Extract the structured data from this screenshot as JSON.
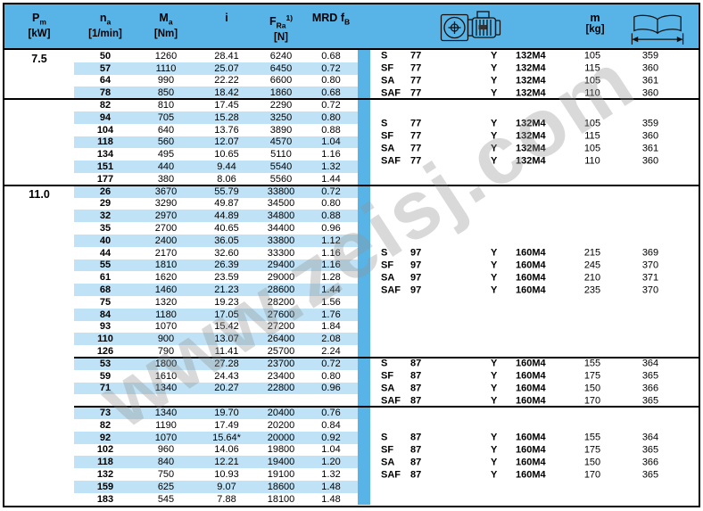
{
  "watermark": "www.zeisj.com",
  "colors": {
    "header_blue": "#58b4e7",
    "row_highlight": "#bfe2f6",
    "separator_blue": "#58b4e7",
    "border": "#000000"
  },
  "header": {
    "pm": {
      "main": "P",
      "sub": "m",
      "unit": "[kW]"
    },
    "na": {
      "main": "n",
      "sub": "a",
      "unit": "[1/min]"
    },
    "ma": {
      "main": "M",
      "sub": "a",
      "unit": "[Nm]"
    },
    "ratio": {
      "main": "i"
    },
    "fra": {
      "main": "F",
      "sub": "Ra",
      "sup": "1)",
      "unit": "[N]"
    },
    "fb": {
      "pre": "MRD ",
      "main": "f",
      "sub": "B"
    },
    "mass": {
      "main": "m",
      "unit": "[kg]"
    },
    "icons": {
      "gearmotor": "gearmotor-drawing-icon",
      "book": "catalog-pages-icon"
    }
  },
  "sections": [
    {
      "pm": "7.5",
      "blocks": [
        {
          "divider": "none",
          "rows": [
            {
              "na": "50",
              "ma": "1260",
              "i": "28.41",
              "fra": "6240",
              "fb": "0.68",
              "hl": false
            },
            {
              "na": "57",
              "ma": "1110",
              "i": "25.07",
              "fra": "6450",
              "fb": "0.72",
              "hl": true
            },
            {
              "na": "64",
              "ma": "990",
              "i": "22.22",
              "fra": "6600",
              "fb": "0.80",
              "hl": false
            },
            {
              "na": "78",
              "ma": "850",
              "i": "18.42",
              "fra": "1860",
              "fb": "0.68",
              "hl": true
            }
          ],
          "right": [
            {
              "type": "S",
              "nr": "77",
              "series": "Y",
              "motor": "132M4",
              "m": "105",
              "page": "359"
            },
            {
              "type": "SF",
              "nr": "77",
              "series": "Y",
              "motor": "132M4",
              "m": "115",
              "page": "360"
            },
            {
              "type": "SA",
              "nr": "77",
              "series": "Y",
              "motor": "132M4",
              "m": "105",
              "page": "361"
            },
            {
              "type": "SAF",
              "nr": "77",
              "series": "Y",
              "motor": "132M4",
              "m": "110",
              "page": "360"
            }
          ]
        },
        {
          "divider": "full",
          "rows": [
            {
              "na": "82",
              "ma": "810",
              "i": "17.45",
              "fra": "2290",
              "fb": "0.72",
              "hl": false
            },
            {
              "na": "94",
              "ma": "705",
              "i": "15.28",
              "fra": "3250",
              "fb": "0.80",
              "hl": true
            },
            {
              "na": "104",
              "ma": "640",
              "i": "13.76",
              "fra": "3890",
              "fb": "0.88",
              "hl": false
            },
            {
              "na": "118",
              "ma": "560",
              "i": "12.07",
              "fra": "4570",
              "fb": "1.04",
              "hl": true
            },
            {
              "na": "134",
              "ma": "495",
              "i": "10.65",
              "fra": "5110",
              "fb": "1.16",
              "hl": false
            },
            {
              "na": "151",
              "ma": "440",
              "i": "9.44",
              "fra": "5540",
              "fb": "1.32",
              "hl": true
            },
            {
              "na": "177",
              "ma": "380",
              "i": "8.06",
              "fra": "5560",
              "fb": "1.44",
              "hl": false
            }
          ],
          "right": [
            {
              "type": "S",
              "nr": "77",
              "series": "Y",
              "motor": "132M4",
              "m": "105",
              "page": "359"
            },
            {
              "type": "SF",
              "nr": "77",
              "series": "Y",
              "motor": "132M4",
              "m": "115",
              "page": "360"
            },
            {
              "type": "SA",
              "nr": "77",
              "series": "Y",
              "motor": "132M4",
              "m": "105",
              "page": "361"
            },
            {
              "type": "SAF",
              "nr": "77",
              "series": "Y",
              "motor": "132M4",
              "m": "110",
              "page": "360"
            }
          ]
        }
      ]
    },
    {
      "pm": "11.0",
      "blocks": [
        {
          "divider": "full",
          "rows": [
            {
              "na": "26",
              "ma": "3670",
              "i": "55.79",
              "fra": "33800",
              "fb": "0.72",
              "hl": true
            },
            {
              "na": "29",
              "ma": "3290",
              "i": "49.87",
              "fra": "34500",
              "fb": "0.80",
              "hl": false
            },
            {
              "na": "32",
              "ma": "2970",
              "i": "44.89",
              "fra": "34800",
              "fb": "0.88",
              "hl": true
            },
            {
              "na": "35",
              "ma": "2700",
              "i": "40.65",
              "fra": "34400",
              "fb": "0.96",
              "hl": false
            },
            {
              "na": "40",
              "ma": "2400",
              "i": "36.05",
              "fra": "33800",
              "fb": "1.12",
              "hl": true
            },
            {
              "na": "44",
              "ma": "2170",
              "i": "32.60",
              "fra": "33300",
              "fb": "1.16",
              "hl": false
            },
            {
              "na": "55",
              "ma": "1810",
              "i": "26.39",
              "fra": "29400",
              "fb": "1.16",
              "hl": true
            },
            {
              "na": "61",
              "ma": "1620",
              "i": "23.59",
              "fra": "29000",
              "fb": "1.28",
              "hl": false
            },
            {
              "na": "68",
              "ma": "1460",
              "i": "21.23",
              "fra": "28600",
              "fb": "1.44",
              "hl": true
            },
            {
              "na": "75",
              "ma": "1320",
              "i": "19.23",
              "fra": "28200",
              "fb": "1.56",
              "hl": false
            },
            {
              "na": "84",
              "ma": "1180",
              "i": "17.05",
              "fra": "27600",
              "fb": "1.76",
              "hl": true
            },
            {
              "na": "93",
              "ma": "1070",
              "i": "15.42",
              "fra": "27200",
              "fb": "1.84",
              "hl": false
            },
            {
              "na": "110",
              "ma": "900",
              "i": "13.07",
              "fra": "26400",
              "fb": "2.08",
              "hl": true
            },
            {
              "na": "126",
              "ma": "790",
              "i": "11.41",
              "fra": "25700",
              "fb": "2.24",
              "hl": false
            }
          ],
          "right": [
            {
              "type": "S",
              "nr": "97",
              "series": "Y",
              "motor": "160M4",
              "m": "215",
              "page": "369"
            },
            {
              "type": "SF",
              "nr": "97",
              "series": "Y",
              "motor": "160M4",
              "m": "245",
              "page": "370"
            },
            {
              "type": "SA",
              "nr": "97",
              "series": "Y",
              "motor": "160M4",
              "m": "210",
              "page": "371"
            },
            {
              "type": "SAF",
              "nr": "97",
              "series": "Y",
              "motor": "160M4",
              "m": "235",
              "page": "370"
            }
          ]
        },
        {
          "divider": "partial",
          "gap_rows_after": 1,
          "rows": [
            {
              "na": "53",
              "ma": "1800",
              "i": "27.28",
              "fra": "23700",
              "fb": "0.72",
              "hl": true
            },
            {
              "na": "59",
              "ma": "1610",
              "i": "24.43",
              "fra": "23400",
              "fb": "0.80",
              "hl": false
            },
            {
              "na": "71",
              "ma": "1340",
              "i": "20.27",
              "fra": "22800",
              "fb": "0.96",
              "hl": true
            }
          ],
          "right": [
            {
              "type": "S",
              "nr": "87",
              "series": "Y",
              "motor": "160M4",
              "m": "155",
              "page": "364"
            },
            {
              "type": "SF",
              "nr": "87",
              "series": "Y",
              "motor": "160M4",
              "m": "175",
              "page": "365"
            },
            {
              "type": "SA",
              "nr": "87",
              "series": "Y",
              "motor": "160M4",
              "m": "150",
              "page": "366"
            },
            {
              "type": "SAF",
              "nr": "87",
              "series": "Y",
              "motor": "160M4",
              "m": "170",
              "page": "365"
            }
          ]
        },
        {
          "divider": "partial",
          "rows": [
            {
              "na": "73",
              "ma": "1340",
              "i": "19.70",
              "fra": "20400",
              "fb": "0.76",
              "hl": true
            },
            {
              "na": "82",
              "ma": "1190",
              "i": "17.49",
              "fra": "20200",
              "fb": "0.84",
              "hl": false
            },
            {
              "na": "92",
              "ma": "1070",
              "i": "15.64*",
              "fra": "20000",
              "fb": "0.92",
              "hl": true
            },
            {
              "na": "102",
              "ma": "960",
              "i": "14.06",
              "fra": "19800",
              "fb": "1.04",
              "hl": false
            },
            {
              "na": "118",
              "ma": "840",
              "i": "12.21",
              "fra": "19400",
              "fb": "1.20",
              "hl": true
            },
            {
              "na": "132",
              "ma": "750",
              "i": "10.93",
              "fra": "19100",
              "fb": "1.32",
              "hl": false
            },
            {
              "na": "159",
              "ma": "625",
              "i": "9.07",
              "fra": "18600",
              "fb": "1.48",
              "hl": true
            },
            {
              "na": "183",
              "ma": "545",
              "i": "7.88",
              "fra": "18100",
              "fb": "1.48",
              "hl": false
            }
          ],
          "right": [
            {
              "type": "S",
              "nr": "87",
              "series": "Y",
              "motor": "160M4",
              "m": "155",
              "page": "364"
            },
            {
              "type": "SF",
              "nr": "87",
              "series": "Y",
              "motor": "160M4",
              "m": "175",
              "page": "365"
            },
            {
              "type": "SA",
              "nr": "87",
              "series": "Y",
              "motor": "160M4",
              "m": "150",
              "page": "366"
            },
            {
              "type": "SAF",
              "nr": "87",
              "series": "Y",
              "motor": "160M4",
              "m": "170",
              "page": "365"
            }
          ]
        }
      ]
    }
  ]
}
